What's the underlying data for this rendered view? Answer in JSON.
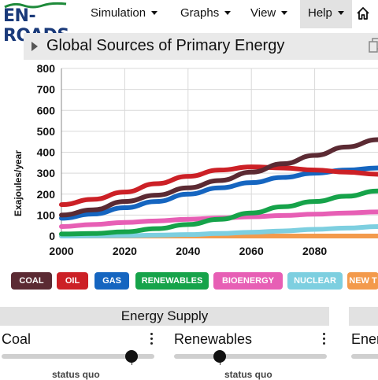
{
  "app": {
    "logo_text": "EN-ROADS",
    "menu": [
      {
        "label": "Simulation"
      },
      {
        "label": "Graphs"
      },
      {
        "label": "View"
      },
      {
        "label": "Help"
      }
    ]
  },
  "graph": {
    "title": "Global Sources of Primary Energy"
  },
  "chart_data": {
    "type": "line",
    "title": "Global Sources of Primary Energy",
    "ylabel": "Exajoules/year",
    "xlabel": "",
    "xlim": [
      2000,
      2100
    ],
    "ylim": [
      0,
      800
    ],
    "x_ticks": [
      "2000",
      "2020",
      "2040",
      "2060",
      "2080"
    ],
    "y_ticks": [
      "800",
      "700",
      "600",
      "500",
      "400",
      "300",
      "200",
      "100",
      "0"
    ],
    "grid": true,
    "x": [
      2000,
      2010,
      2020,
      2030,
      2040,
      2050,
      2060,
      2070,
      2080,
      2090,
      2100
    ],
    "series": [
      {
        "name": "COAL",
        "color": "#5b2a33",
        "values": [
          100,
          125,
          165,
          195,
          230,
          265,
          305,
          345,
          385,
          425,
          460
        ]
      },
      {
        "name": "OIL",
        "color": "#cc2026",
        "values": [
          150,
          175,
          210,
          250,
          285,
          315,
          330,
          325,
          315,
          305,
          295
        ]
      },
      {
        "name": "GAS",
        "color": "#1565c0",
        "values": [
          85,
          105,
          135,
          165,
          200,
          230,
          255,
          280,
          300,
          315,
          325
        ]
      },
      {
        "name": "RENEWABLES",
        "color": "#16a34a",
        "values": [
          10,
          12,
          20,
          35,
          55,
          80,
          110,
          140,
          165,
          190,
          215
        ]
      },
      {
        "name": "BIOENERGY",
        "color": "#e75fb5",
        "values": [
          45,
          55,
          65,
          72,
          80,
          86,
          92,
          98,
          104,
          110,
          115
        ]
      },
      {
        "name": "NUCLEAR",
        "color": "#7dcfe0",
        "values": [
          0,
          1,
          2,
          4,
          7,
          12,
          18,
          24,
          32,
          38,
          45
        ]
      },
      {
        "name": "NEW TECH",
        "color": "#f39a4c",
        "values": [
          0,
          0,
          0,
          0,
          0,
          0,
          0,
          0,
          0,
          0,
          0
        ]
      }
    ]
  },
  "legend": [
    {
      "label": "COAL",
      "color": "#5b2a33"
    },
    {
      "label": "OIL",
      "color": "#cc2026"
    },
    {
      "label": "GAS",
      "color": "#1565c0"
    },
    {
      "label": "RENEWABLES",
      "color": "#16a34a"
    },
    {
      "label": "BIOENERGY",
      "color": "#e75fb5"
    },
    {
      "label": "NUCLEAR",
      "color": "#7dcfe0"
    },
    {
      "label": "NEW T",
      "color": "#f39a4c"
    }
  ],
  "panels": {
    "energy_supply": "Energy Supply",
    "coal_label": "Coal",
    "coal_status": "status quo",
    "coal_level": 0.85,
    "renewables_label": "Renewables",
    "renewables_status": "status quo",
    "renewables_level": 0.3,
    "third_label": "Ener"
  }
}
